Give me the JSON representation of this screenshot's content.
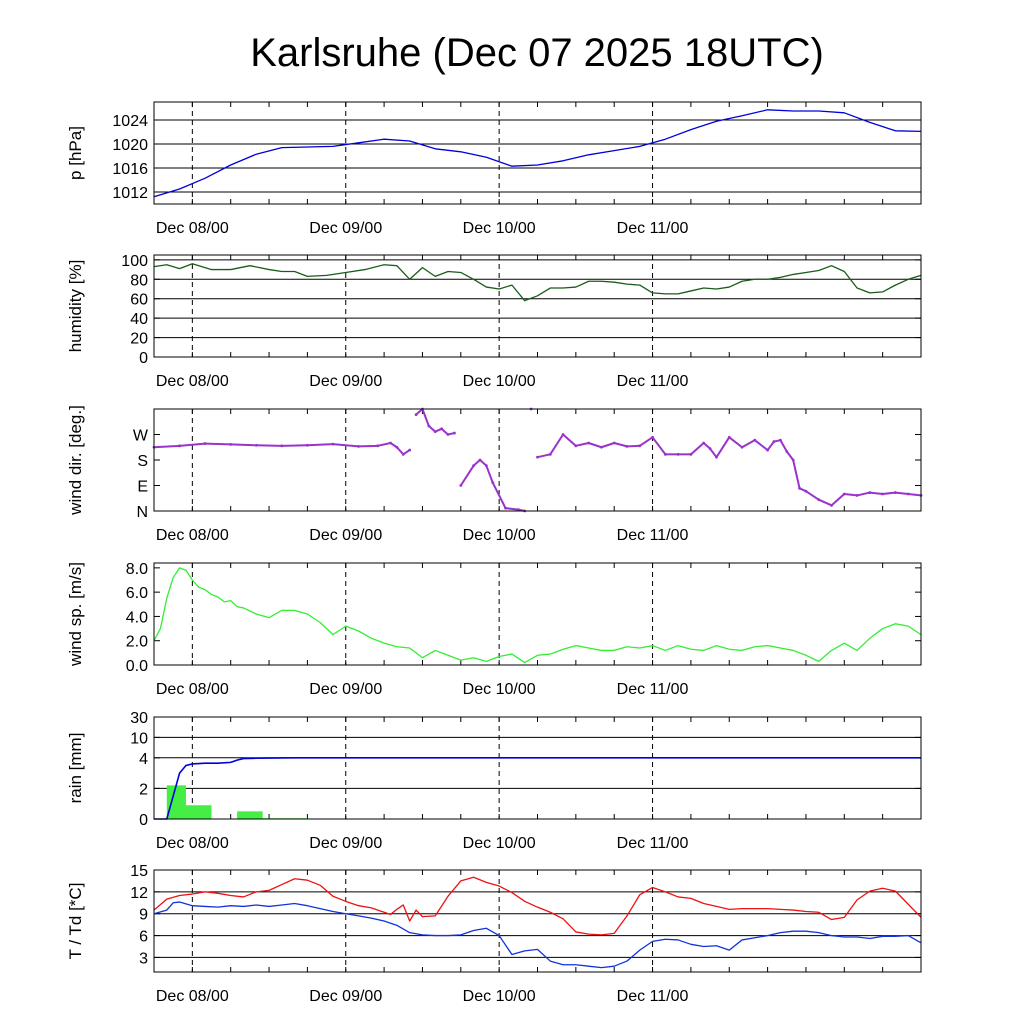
{
  "chart_title": "Karlsruhe (Dec 07 2025 18UTC)",
  "colors": {
    "pressure": "#0000dd",
    "humidity": "#1a5c1a",
    "wind_dir": "#9933cc",
    "wind_speed": "#33ee33",
    "rain_bars": "#44ee44",
    "rain_total": "#0000dd",
    "temperature": "#ee1111",
    "dewpoint": "#1133dd"
  },
  "chart_data": [
    {
      "type": "line",
      "ylabel": "p [hPa]",
      "x_tick_labels": [
        "Dec 08/00",
        "Dec 09/00",
        "Dec 10/00",
        "Dec 11/00"
      ],
      "ylim": [
        1010,
        1027
      ],
      "yticks": [
        1012,
        1016,
        1020,
        1024
      ],
      "ytick_labels": [
        "1012",
        "1016",
        "1020",
        "1024"
      ],
      "grid": true,
      "series": [
        {
          "color_key": "pressure",
          "x": [
            0,
            4,
            8,
            12,
            16,
            20,
            24,
            28,
            32,
            36,
            40,
            44,
            48,
            52,
            56,
            60,
            64,
            68,
            72,
            76,
            80,
            84,
            88,
            92,
            96,
            100,
            104,
            108,
            112,
            116,
            120
          ],
          "values": [
            1011.2,
            1012.5,
            1014.3,
            1016.5,
            1018.3,
            1019.4,
            1019.5,
            1019.6,
            1020.2,
            1020.8,
            1020.5,
            1019.2,
            1018.7,
            1017.8,
            1016.3,
            1016.5,
            1017.2,
            1018.2,
            1018.9,
            1019.6,
            1020.8,
            1022.4,
            1023.8,
            1024.7,
            1025.7,
            1025.5,
            1025.5,
            1025.2,
            1023.6,
            1022.2,
            1022.1
          ]
        }
      ]
    },
    {
      "type": "line",
      "ylabel": "humidity [%]",
      "x_tick_labels": [
        "Dec 08/00",
        "Dec 09/00",
        "Dec 10/00",
        "Dec 11/00"
      ],
      "ylim": [
        0,
        105
      ],
      "yticks": [
        0,
        20,
        40,
        60,
        80,
        100
      ],
      "ytick_labels": [
        "0",
        "20",
        "40",
        "60",
        "80",
        "100"
      ],
      "grid": true,
      "series": [
        {
          "color_key": "humidity",
          "x": [
            0,
            2,
            4,
            6,
            9,
            12,
            15,
            18,
            20,
            22,
            24,
            27,
            30,
            33,
            36,
            38,
            40,
            42,
            44,
            46,
            48,
            50,
            52,
            54,
            56,
            58,
            60,
            62,
            64,
            66,
            68,
            70,
            72,
            74,
            76,
            78,
            80,
            82,
            84,
            86,
            88,
            90,
            92,
            94,
            96,
            98,
            100,
            102,
            104,
            106,
            108,
            110,
            112,
            114,
            116,
            118,
            120
          ],
          "values": [
            93,
            95,
            91,
            96,
            90,
            90,
            94,
            90,
            88,
            88,
            83,
            84,
            87,
            90,
            95,
            94,
            80,
            92,
            83,
            88,
            87,
            80,
            72,
            70,
            74,
            58,
            63,
            71,
            71,
            72,
            78,
            78,
            77,
            75,
            74,
            66,
            65,
            65,
            68,
            71,
            70,
            72,
            78,
            80,
            80,
            82,
            85,
            87,
            89,
            94,
            88,
            71,
            66,
            67,
            74,
            80,
            84
          ]
        }
      ]
    },
    {
      "type": "scatter",
      "ylabel": "wind dir. [deg.]",
      "x_tick_labels": [
        "Dec 08/00",
        "Dec 09/00",
        "Dec 10/00",
        "Dec 11/00"
      ],
      "ylim": [
        0,
        360
      ],
      "yticks": [
        0,
        90,
        180,
        270
      ],
      "ytick_labels": [
        "N",
        "E",
        "S",
        "W"
      ],
      "grid": false,
      "series": [
        {
          "color_key": "wind_dir",
          "x": [
            0,
            4,
            8,
            12,
            16,
            20,
            24,
            28,
            32,
            35,
            37,
            38,
            39,
            40,
            41,
            42,
            43,
            44,
            45,
            46,
            47,
            48,
            50,
            51,
            52,
            53,
            55,
            57,
            58,
            59,
            60,
            62,
            64,
            66,
            68,
            70,
            72,
            74,
            76,
            78,
            80,
            82,
            84,
            86,
            87,
            88,
            90,
            92,
            94,
            96,
            97,
            98,
            99,
            100,
            101,
            102,
            104,
            106,
            108,
            110,
            112,
            114,
            116,
            118,
            120
          ],
          "values": [
            225,
            230,
            238,
            235,
            232,
            230,
            232,
            236,
            228,
            230,
            240,
            225,
            200,
            215,
            340,
            360,
            300,
            280,
            290,
            270,
            275,
            90,
            160,
            180,
            160,
            100,
            10,
            5,
            0,
            360,
            190,
            200,
            270,
            230,
            240,
            225,
            240,
            228,
            230,
            260,
            200,
            200,
            200,
            240,
            220,
            190,
            260,
            225,
            250,
            215,
            245,
            250,
            210,
            180,
            80,
            70,
            40,
            20,
            60,
            55,
            65,
            60,
            65,
            60,
            55
          ]
        }
      ]
    },
    {
      "type": "line",
      "ylabel": "wind sp. [m/s]",
      "x_tick_labels": [
        "Dec 08/00",
        "Dec 09/00",
        "Dec 10/00",
        "Dec 11/00"
      ],
      "ylim": [
        0,
        8.4
      ],
      "yticks": [
        0,
        2,
        4,
        6,
        8
      ],
      "ytick_labels": [
        "0.0",
        "2.0",
        "4.0",
        "6.0",
        "8.0"
      ],
      "grid": false,
      "series": [
        {
          "color_key": "wind_speed",
          "x": [
            0,
            1,
            2,
            3,
            4,
            5,
            6,
            7,
            8,
            9,
            10,
            11,
            12,
            13,
            14,
            16,
            18,
            20,
            22,
            24,
            26,
            28,
            30,
            32,
            34,
            36,
            38,
            40,
            42,
            44,
            46,
            48,
            50,
            52,
            54,
            56,
            58,
            60,
            62,
            64,
            66,
            68,
            70,
            72,
            74,
            76,
            78,
            80,
            82,
            84,
            86,
            88,
            90,
            92,
            94,
            96,
            98,
            100,
            102,
            104,
            106,
            108,
            110,
            112,
            114,
            116,
            118,
            120
          ],
          "values": [
            2.0,
            3.0,
            5.5,
            7.2,
            8.0,
            7.8,
            7.0,
            6.4,
            6.2,
            5.8,
            5.6,
            5.2,
            5.3,
            4.8,
            4.7,
            4.2,
            3.9,
            4.5,
            4.5,
            4.2,
            3.5,
            2.5,
            3.2,
            2.8,
            2.2,
            1.8,
            1.5,
            1.4,
            0.6,
            1.2,
            0.8,
            0.4,
            0.6,
            0.3,
            0.7,
            0.9,
            0.2,
            0.8,
            0.9,
            1.3,
            1.6,
            1.4,
            1.2,
            1.2,
            1.5,
            1.4,
            1.6,
            1.2,
            1.6,
            1.3,
            1.2,
            1.6,
            1.3,
            1.2,
            1.5,
            1.6,
            1.4,
            1.2,
            0.8,
            0.3,
            1.2,
            1.8,
            1.2,
            2.2,
            3.0,
            3.4,
            3.2,
            2.5
          ]
        }
      ]
    },
    {
      "type": "bar",
      "ylabel": "rain [mm]",
      "x_tick_labels": [
        "Dec 08/00",
        "Dec 09/00",
        "Dec 10/00",
        "Dec 11/00"
      ],
      "ytick_labels": [
        "0",
        "2",
        "4",
        "10",
        "30"
      ],
      "grid": true,
      "bars": {
        "color_key": "rain_bars",
        "x_start": [
          2,
          5,
          13,
          16
        ],
        "x_end": [
          5,
          9,
          17,
          24
        ],
        "values": [
          2.2,
          0.9,
          0.5,
          0.05
        ]
      },
      "cumulative": {
        "color_key": "rain_total",
        "x": [
          0,
          2,
          3,
          4,
          5,
          6,
          8,
          10,
          12,
          13,
          14,
          16,
          18,
          20,
          22,
          24,
          60,
          96,
          120
        ],
        "values": [
          0,
          0,
          1.5,
          3.0,
          3.5,
          3.6,
          3.65,
          3.65,
          3.7,
          3.85,
          3.95,
          3.97,
          3.98,
          3.99,
          4.0,
          4.0,
          4.0,
          4.0,
          4.0
        ]
      }
    },
    {
      "type": "line",
      "ylabel": "T / Td [*C]",
      "x_tick_labels": [
        "Dec 08/00",
        "Dec 09/00",
        "Dec 10/00",
        "Dec 11/00"
      ],
      "ylim": [
        1,
        15
      ],
      "yticks": [
        3,
        6,
        9,
        12,
        15
      ],
      "ytick_labels": [
        "3",
        "6",
        "9",
        "12",
        "15"
      ],
      "grid": true,
      "series": [
        {
          "color_key": "temperature",
          "x": [
            0,
            2,
            4,
            6,
            8,
            10,
            12,
            14,
            16,
            18,
            20,
            22,
            24,
            26,
            28,
            30,
            32,
            34,
            36,
            37,
            38,
            39,
            40,
            41,
            42,
            44,
            46,
            48,
            50,
            52,
            54,
            56,
            58,
            60,
            62,
            64,
            66,
            68,
            70,
            72,
            74,
            76,
            78,
            80,
            82,
            84,
            86,
            88,
            90,
            92,
            94,
            96,
            98,
            100,
            102,
            104,
            106,
            108,
            110,
            112,
            114,
            116,
            118,
            120
          ],
          "values": [
            9.5,
            11.0,
            11.5,
            11.7,
            12.0,
            11.8,
            11.5,
            11.3,
            12.0,
            12.2,
            13.0,
            13.8,
            13.6,
            12.9,
            11.4,
            10.7,
            10.1,
            9.8,
            9.2,
            8.9,
            9.6,
            10.2,
            8.0,
            9.5,
            8.6,
            8.7,
            11.4,
            13.5,
            14.0,
            13.3,
            12.8,
            11.9,
            10.7,
            9.9,
            9.2,
            8.3,
            6.5,
            6.2,
            6.1,
            6.3,
            8.7,
            11.6,
            12.6,
            12.0,
            11.3,
            11.1,
            10.4,
            10.0,
            9.6,
            9.7,
            9.7,
            9.7,
            9.6,
            9.5,
            9.3,
            9.2,
            8.2,
            8.5,
            10.9,
            12.1,
            12.5,
            12.1,
            10.3,
            8.5
          ]
        },
        {
          "color_key": "dewpoint",
          "x": [
            0,
            2,
            3,
            4,
            6,
            8,
            10,
            12,
            14,
            16,
            18,
            20,
            22,
            24,
            26,
            28,
            30,
            32,
            34,
            36,
            38,
            40,
            42,
            44,
            46,
            48,
            50,
            52,
            54,
            56,
            58,
            60,
            62,
            64,
            66,
            68,
            70,
            72,
            74,
            76,
            78,
            80,
            82,
            84,
            86,
            88,
            90,
            92,
            94,
            96,
            98,
            100,
            102,
            104,
            106,
            108,
            110,
            112,
            114,
            116,
            118,
            120
          ],
          "values": [
            9.0,
            9.5,
            10.5,
            10.6,
            10.1,
            10.0,
            9.9,
            10.1,
            10.0,
            10.2,
            10.0,
            10.2,
            10.4,
            10.1,
            9.7,
            9.3,
            9.0,
            8.7,
            8.4,
            8.0,
            7.4,
            6.4,
            6.1,
            6.0,
            6.0,
            6.1,
            6.7,
            7.0,
            6.0,
            3.4,
            3.9,
            4.1,
            2.5,
            2.0,
            2.0,
            1.8,
            1.6,
            1.8,
            2.5,
            4.0,
            5.2,
            5.5,
            5.4,
            4.8,
            4.5,
            4.6,
            4.0,
            5.4,
            5.7,
            6.0,
            6.4,
            6.6,
            6.6,
            6.4,
            6.0,
            5.8,
            5.8,
            5.6,
            5.9,
            5.9,
            6.0,
            5.0
          ]
        }
      ]
    }
  ]
}
